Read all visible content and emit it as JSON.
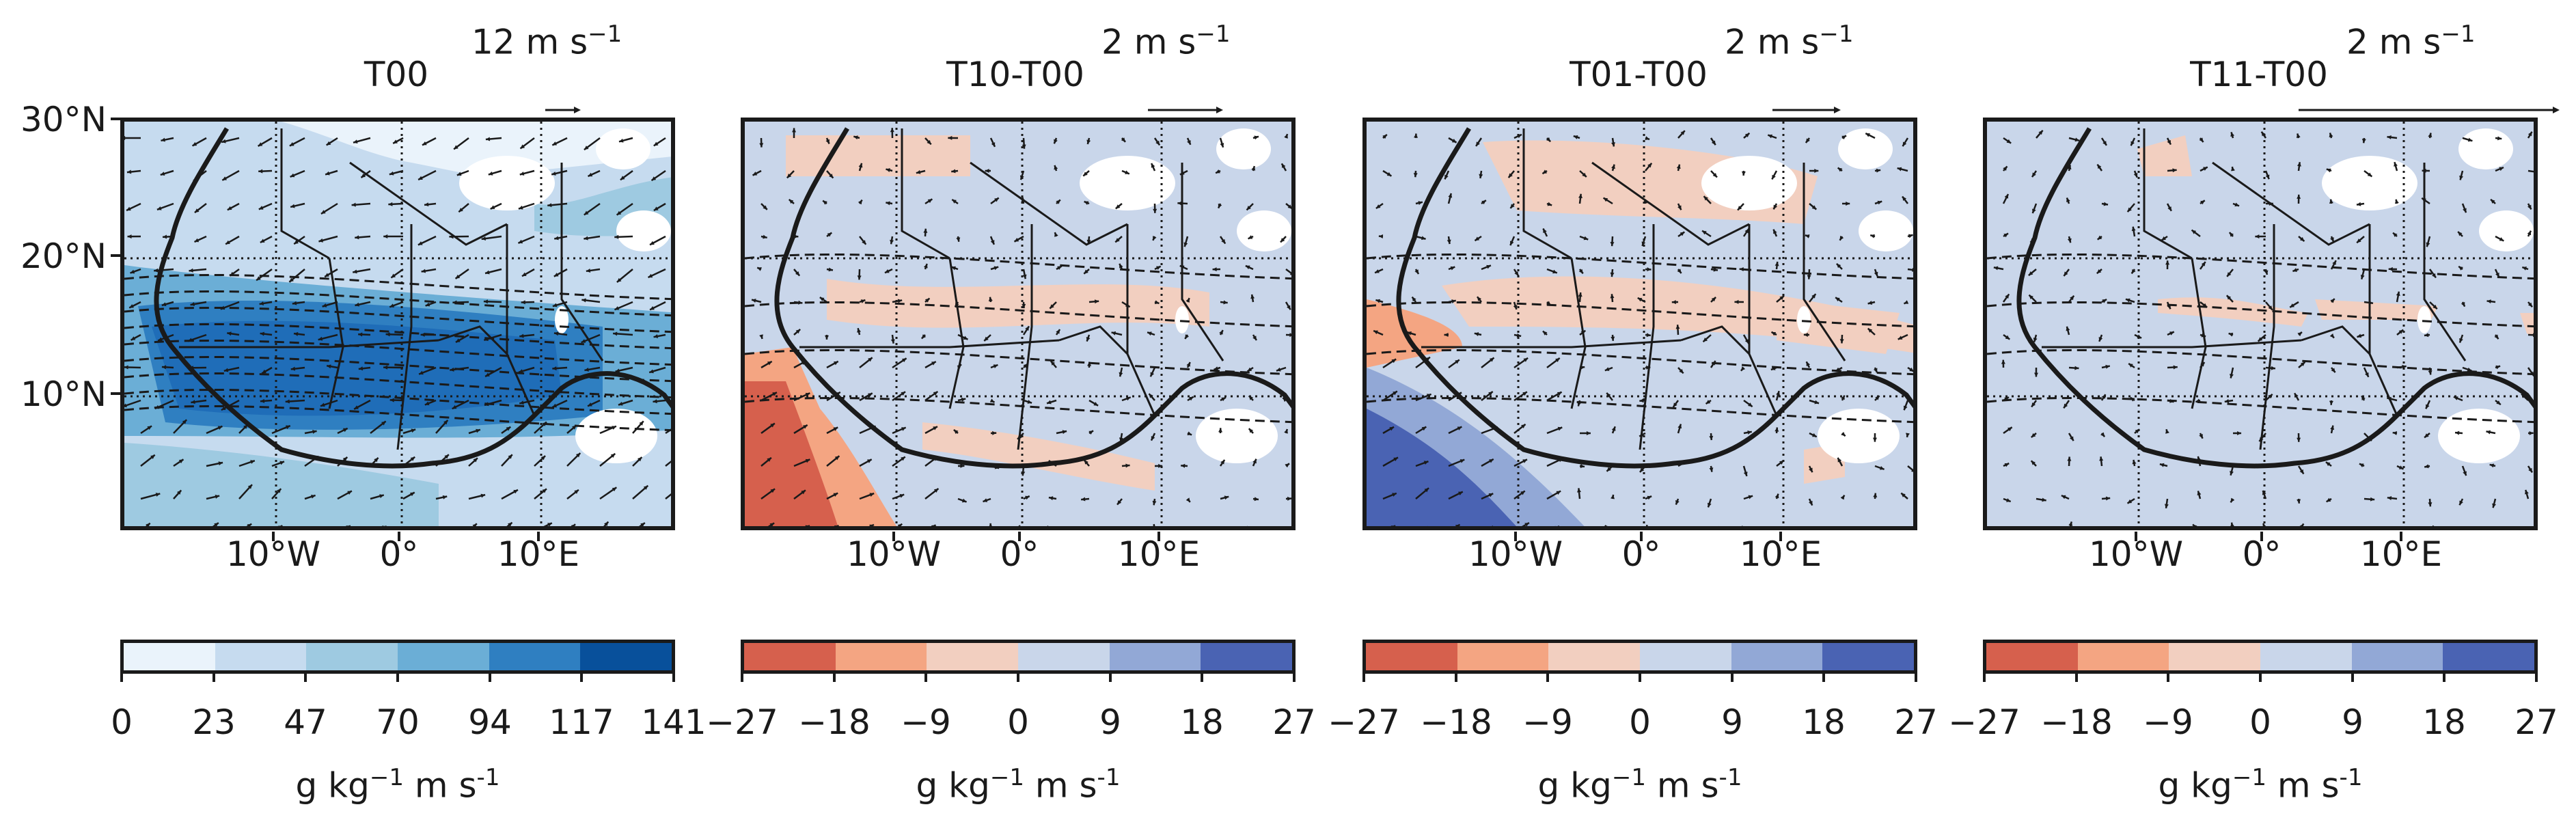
{
  "y_axis": {
    "labels": [
      "30°N",
      "20°N",
      "10°N"
    ]
  },
  "x_axis": {
    "labels": [
      "10°W",
      "0°",
      "10°E"
    ]
  },
  "colorbar_unit": {
    "base": "g kg",
    "exp1": "−1",
    "mid": " m s",
    "exp2": "-1"
  },
  "panels": [
    {
      "title": "T00",
      "vector_scale": {
        "value": "12 m s",
        "exp": "−1"
      },
      "type": "absolute",
      "colorbar_ticks": [
        "0",
        "23",
        "47",
        "70",
        "94",
        "117",
        "141"
      ],
      "colorbar_colors": [
        "#eaf3fb",
        "#c6dbef",
        "#9ecae1",
        "#6baed6",
        "#2f7fc1",
        "#08509b"
      ],
      "fill_colors": {
        "background": "#c6dbef",
        "band_outer": "#6baed6",
        "band_core": "#1f6db8",
        "band_mid": "#2f7fc1",
        "sahara_light": "#eaf3fb",
        "gulf": "#9ecae1"
      }
    },
    {
      "title": "T10-T00",
      "vector_scale": {
        "value": "2 m s",
        "exp": "−1"
      },
      "type": "anomaly",
      "colorbar_ticks": [
        "−27",
        "−18",
        "−9",
        "0",
        "9",
        "18",
        "27"
      ],
      "colorbar_colors": [
        "#d6604d",
        "#f4a582",
        "#f2cfc0",
        "#c9d6ea",
        "#92a8d6",
        "#4a63b3"
      ],
      "fill_colors": {
        "background": "#c9d6ea",
        "positive_patch": "#f2cfc0",
        "strong": "#f4a582",
        "extreme": "#d6604d"
      }
    },
    {
      "title": "T01-T00",
      "vector_scale": {
        "value": "2 m s",
        "exp": "−1"
      },
      "type": "anomaly",
      "colorbar_ticks": [
        "−27",
        "−18",
        "−9",
        "0",
        "9",
        "18",
        "27"
      ],
      "colorbar_colors": [
        "#d6604d",
        "#f4a582",
        "#f2cfc0",
        "#c9d6ea",
        "#92a8d6",
        "#4a63b3"
      ],
      "fill_colors": {
        "background": "#c9d6ea",
        "positive_patch": "#f2cfc0",
        "strong": "#f4a582",
        "blue_mid": "#92a8d6",
        "blue_deep": "#4a63b3"
      }
    },
    {
      "title": "T11-T00",
      "vector_scale": {
        "value": "2 m s",
        "exp": "−1"
      },
      "type": "anomaly",
      "colorbar_ticks": [
        "−27",
        "−18",
        "−9",
        "0",
        "9",
        "18",
        "27"
      ],
      "colorbar_colors": [
        "#d6604d",
        "#f4a582",
        "#f2cfc0",
        "#c9d6ea",
        "#92a8d6",
        "#4a63b3"
      ],
      "fill_colors": {
        "background": "#c9d6ea",
        "positive_patch": "#f2cfc0"
      }
    }
  ]
}
